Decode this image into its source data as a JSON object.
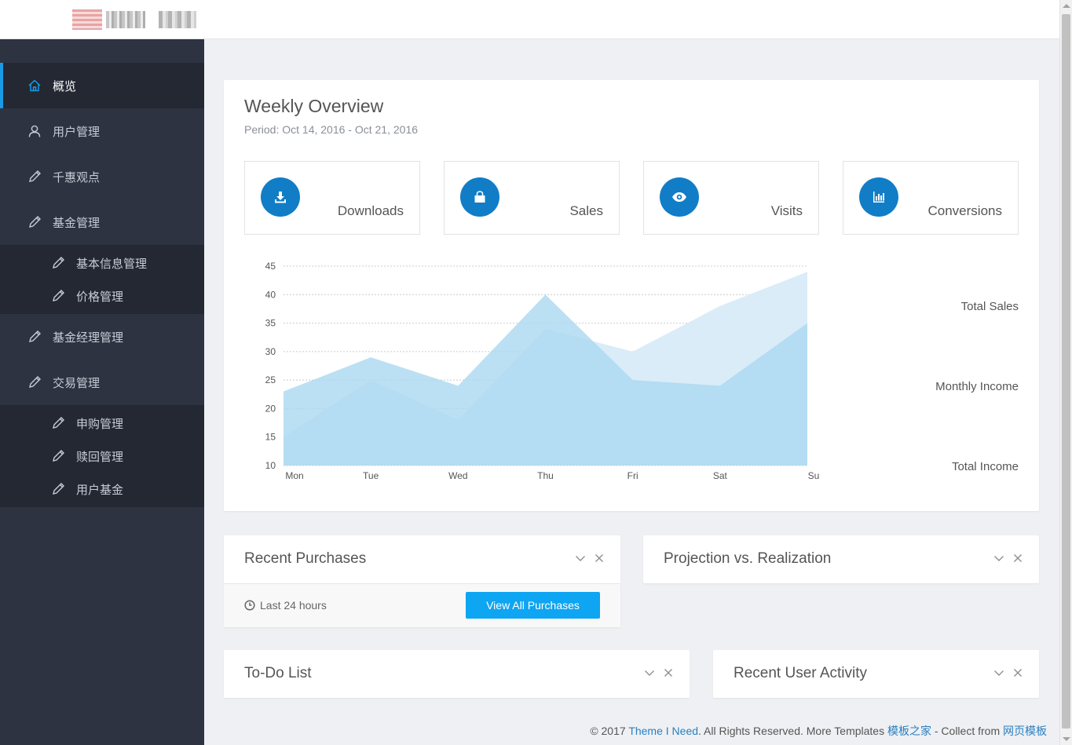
{
  "sidebar": {
    "items": [
      {
        "label": "概览",
        "icon": "home-icon",
        "active": true
      },
      {
        "label": "用户管理",
        "icon": "user-icon"
      },
      {
        "label": "千惠观点",
        "icon": "pencil-icon"
      },
      {
        "label": "基金管理",
        "icon": "pencil-icon",
        "children": [
          {
            "label": "基本信息管理",
            "icon": "pencil-icon"
          },
          {
            "label": "价格管理",
            "icon": "pencil-icon"
          }
        ]
      },
      {
        "label": "基金经理管理",
        "icon": "pencil-icon"
      },
      {
        "label": "交易管理",
        "icon": "pencil-icon",
        "children": [
          {
            "label": "申购管理",
            "icon": "pencil-icon"
          },
          {
            "label": "赎回管理",
            "icon": "pencil-icon"
          },
          {
            "label": "用户基金",
            "icon": "pencil-icon"
          }
        ]
      }
    ]
  },
  "overview": {
    "title": "Weekly Overview",
    "period": "Period: Oct 14, 2016 - Oct 21, 2016",
    "stats": [
      {
        "label": "Downloads",
        "icon": "download-icon"
      },
      {
        "label": "Sales",
        "icon": "shopping-bag-icon"
      },
      {
        "label": "Visits",
        "icon": "eye-icon"
      },
      {
        "label": "Conversions",
        "icon": "bar-chart-icon"
      }
    ],
    "legend": [
      "Total Sales",
      "Monthly Income",
      "Total Income"
    ]
  },
  "chart_data": {
    "type": "area",
    "categories": [
      "Mon",
      "Tue",
      "Wed",
      "Thu",
      "Fri",
      "Sat",
      "Su"
    ],
    "ylim": [
      10,
      45
    ],
    "yticks": [
      10,
      15,
      20,
      25,
      30,
      35,
      40,
      45
    ],
    "grid": true,
    "series": [
      {
        "name": "Total Sales",
        "values": [
          15,
          25,
          18,
          34,
          30,
          38,
          44
        ],
        "color": "#d9ecf8"
      },
      {
        "name": "Monthly Income",
        "values": [
          23,
          29,
          24,
          40,
          25,
          24,
          35
        ],
        "color": "#a9d7ef"
      }
    ]
  },
  "widgets": {
    "recent_purchases": {
      "title": "Recent Purchases",
      "time": "Last 24 hours",
      "button": "View All Purchases"
    },
    "projection": {
      "title": "Projection vs. Realization"
    },
    "todo": {
      "title": "To-Do List"
    },
    "activity": {
      "title": "Recent User Activity"
    }
  },
  "footer": {
    "prefix": "© 2017 ",
    "theme_link": "Theme I Need",
    "middle": ". All Rights Reserved. More Templates ",
    "templates_link": "模板之家",
    "collect": " - Collect from ",
    "collect_link": "网页模板"
  },
  "colors": {
    "accent": "#1a9be6",
    "sidebar_bg": "#2d3340",
    "icon_circle": "#117dc7",
    "button": "#0ea5f2"
  }
}
